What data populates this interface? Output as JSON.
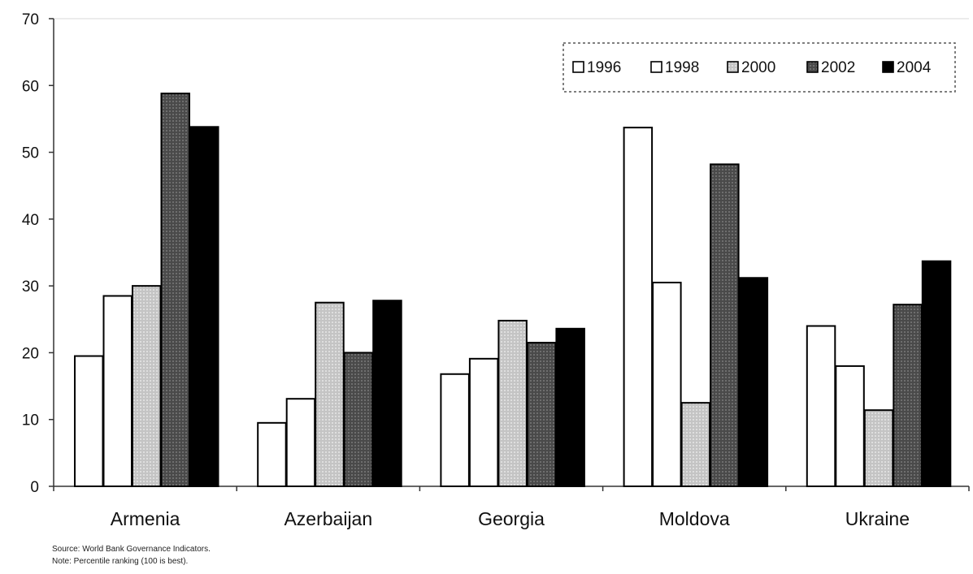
{
  "chart_data": {
    "type": "bar",
    "categories": [
      "Armenia",
      "Azerbaijan",
      "Georgia",
      "Moldova",
      "Ukraine"
    ],
    "series": [
      {
        "name": "1996",
        "values": [
          19.5,
          9.5,
          16.8,
          53.7,
          24.0
        ],
        "color": "#ffffff"
      },
      {
        "name": "1998",
        "values": [
          28.5,
          13.1,
          19.1,
          30.5,
          18.0
        ],
        "color": "#ffffff"
      },
      {
        "name": "2000",
        "values": [
          30.0,
          27.5,
          24.8,
          12.5,
          11.4
        ],
        "color": "#c4c4c4"
      },
      {
        "name": "2002",
        "values": [
          58.8,
          20.0,
          21.5,
          48.2,
          27.2
        ],
        "color": "#4a4a4a"
      },
      {
        "name": "2004",
        "values": [
          53.8,
          27.8,
          23.6,
          31.2,
          33.7
        ],
        "color": "#000000"
      }
    ],
    "ylim": [
      0,
      70
    ],
    "yticks": [
      "0",
      "10",
      "20",
      "30",
      "40",
      "50",
      "60",
      "70"
    ],
    "legend_position": "top-right",
    "grid": false
  },
  "notes": {
    "source": "Source: World Bank Governance Indicators.",
    "note": "Note: Percentile ranking (100 is best)."
  }
}
